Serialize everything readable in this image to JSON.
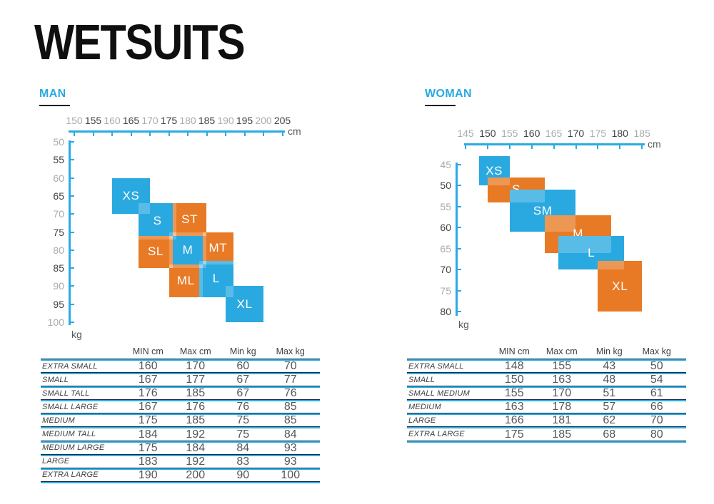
{
  "title": "WETSUITS",
  "colors": {
    "blue": "#29A9E0",
    "orange": "#E87A25",
    "axis_blue": "#29ABE2",
    "label_blue": "#29A9E0",
    "tick_dark": "#414042",
    "tick_gray": "#A9ABAE",
    "rule_dark": "#1C2B45",
    "rule_blue": "#29ABE2",
    "table_text": "#54565A",
    "title_black": "#0F0F10"
  },
  "table_headers": [
    "MIN cm",
    "Max cm",
    "Min kg",
    "Max kg"
  ],
  "chart_data": [
    {
      "type": "range-box",
      "title": "MAN",
      "xlabel": "cm",
      "ylabel": "kg",
      "x_ticks": [
        150,
        155,
        160,
        165,
        170,
        175,
        180,
        185,
        190,
        195,
        200,
        205
      ],
      "y_ticks": [
        50,
        55,
        60,
        65,
        70,
        75,
        80,
        85,
        90,
        95,
        100
      ],
      "xlim": [
        150,
        205
      ],
      "ylim": [
        50,
        100
      ],
      "draw_order": [
        "XS",
        "S",
        "M",
        "ST",
        "SL",
        "MT",
        "ML",
        "L",
        "XL"
      ],
      "sizes": [
        {
          "code": "XS",
          "name": "EXTRA SMALL",
          "min_cm": 160,
          "max_cm": 170,
          "min_kg": 60,
          "max_kg": 70,
          "color": "blue"
        },
        {
          "code": "S",
          "name": "SMALL",
          "min_cm": 167,
          "max_cm": 177,
          "min_kg": 67,
          "max_kg": 77,
          "color": "blue"
        },
        {
          "code": "ST",
          "name": "SMALL TALL",
          "min_cm": 176,
          "max_cm": 185,
          "min_kg": 67,
          "max_kg": 76,
          "color": "orange"
        },
        {
          "code": "SL",
          "name": "SMALL LARGE",
          "min_cm": 167,
          "max_cm": 176,
          "min_kg": 76,
          "max_kg": 85,
          "color": "orange"
        },
        {
          "code": "M",
          "name": "MEDIUM",
          "min_cm": 175,
          "max_cm": 185,
          "min_kg": 75,
          "max_kg": 85,
          "color": "blue"
        },
        {
          "code": "MT",
          "name": "MEDIUM TALL",
          "min_cm": 184,
          "max_cm": 192,
          "min_kg": 75,
          "max_kg": 84,
          "color": "orange"
        },
        {
          "code": "ML",
          "name": "MEDIUM LARGE",
          "min_cm": 175,
          "max_cm": 184,
          "min_kg": 84,
          "max_kg": 93,
          "color": "orange"
        },
        {
          "code": "L",
          "name": "LARGE",
          "min_cm": 183,
          "max_cm": 192,
          "min_kg": 83,
          "max_kg": 93,
          "color": "blue"
        },
        {
          "code": "XL",
          "name": "EXTRA LARGE",
          "min_cm": 190,
          "max_cm": 200,
          "min_kg": 90,
          "max_kg": 100,
          "color": "blue"
        }
      ]
    },
    {
      "type": "range-box",
      "title": "WOMAN",
      "xlabel": "cm",
      "ylabel": "kg",
      "x_ticks": [
        145,
        150,
        155,
        160,
        165,
        170,
        175,
        180,
        185
      ],
      "y_ticks": [
        45,
        50,
        55,
        60,
        65,
        70,
        75,
        80
      ],
      "xlim": [
        145,
        185
      ],
      "ylim": [
        45,
        80
      ],
      "draw_order": [
        "XS",
        "S",
        "SM",
        "M",
        "L",
        "XL"
      ],
      "sizes": [
        {
          "code": "XS",
          "name": "EXTRA SMALL",
          "min_cm": 148,
          "max_cm": 155,
          "min_kg": 43,
          "max_kg": 50,
          "color": "blue"
        },
        {
          "code": "S",
          "name": "SMALL",
          "min_cm": 150,
          "max_cm": 163,
          "min_kg": 48,
          "max_kg": 54,
          "color": "orange"
        },
        {
          "code": "SM",
          "name": "SMALL MEDIUM",
          "min_cm": 155,
          "max_cm": 170,
          "min_kg": 51,
          "max_kg": 61,
          "color": "blue"
        },
        {
          "code": "M",
          "name": "MEDIUM",
          "min_cm": 163,
          "max_cm": 178,
          "min_kg": 57,
          "max_kg": 66,
          "color": "orange"
        },
        {
          "code": "L",
          "name": "LARGE",
          "min_cm": 166,
          "max_cm": 181,
          "min_kg": 62,
          "max_kg": 70,
          "color": "blue"
        },
        {
          "code": "XL",
          "name": "EXTRA LARGE",
          "min_cm": 175,
          "max_cm": 185,
          "min_kg": 68,
          "max_kg": 80,
          "color": "orange"
        }
      ]
    }
  ]
}
